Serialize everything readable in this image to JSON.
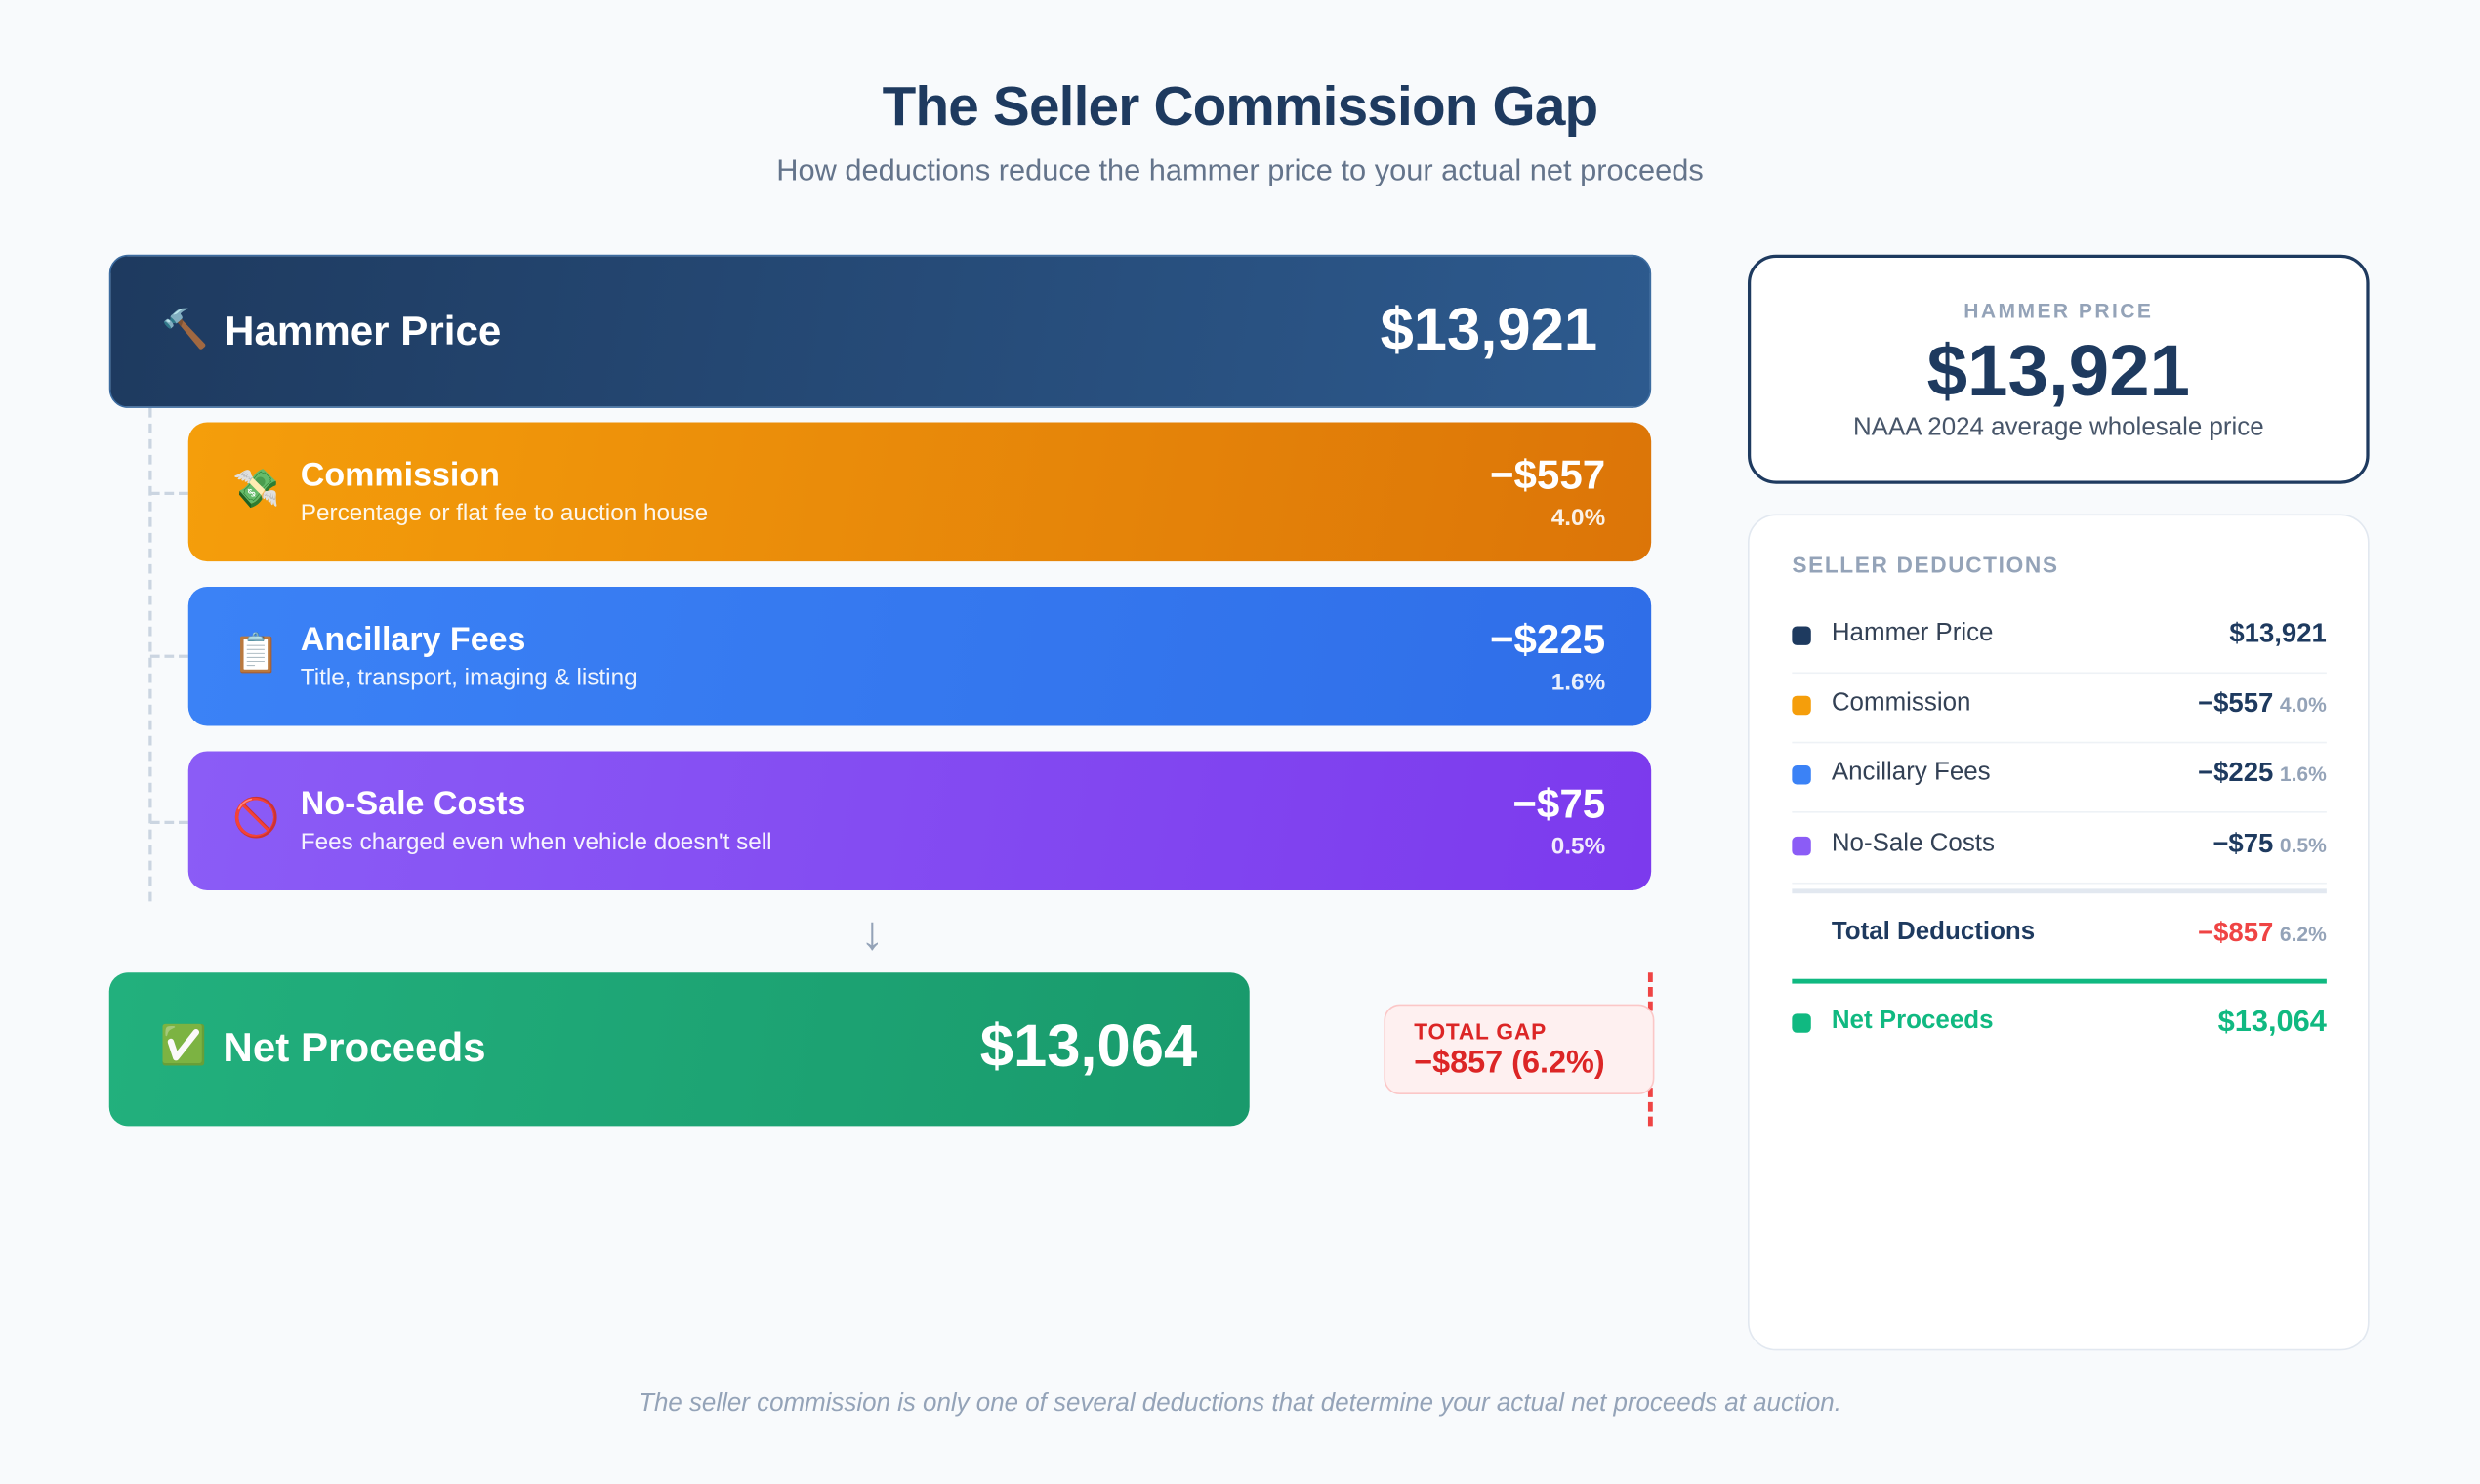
{
  "header": {
    "title": "The Seller Commission Gap",
    "subtitle": "How deductions reduce the hammer price to your actual net proceeds"
  },
  "flow": {
    "hammer": {
      "icon": "hammer-icon",
      "glyph": "🔨",
      "label": "Hammer Price",
      "value": "$13,921"
    },
    "deductions": [
      {
        "icon": "money-with-wings-icon",
        "glyph": "💸",
        "name": "Commission",
        "desc": "Percentage or flat fee to auction house",
        "amount": "−$557",
        "pct": "4.0%",
        "color": "#f59e0b"
      },
      {
        "icon": "clipboard-icon",
        "glyph": "📋",
        "name": "Ancillary Fees",
        "desc": "Title, transport, imaging & listing",
        "amount": "−$225",
        "pct": "1.6%",
        "color": "#3b82f6"
      },
      {
        "icon": "prohibited-icon",
        "glyph": "🚫",
        "name": "No-Sale Costs",
        "desc": "Fees charged even when vehicle doesn't sell",
        "amount": "−$75",
        "pct": "0.5%",
        "color": "#8b5cf6"
      }
    ],
    "arrow": "↓",
    "net": {
      "icon": "check-mark-icon",
      "glyph": "✅",
      "label": "Net Proceeds",
      "value": "$13,064"
    },
    "gap": {
      "label": "TOTAL GAP",
      "value": "−$857 (6.2%)"
    }
  },
  "summary_card": {
    "label": "HAMMER PRICE",
    "value": "$13,921",
    "caption": "NAAA 2024 average wholesale price"
  },
  "deductions_card": {
    "title": "SELLER DEDUCTIONS",
    "rows": [
      {
        "name": "Hammer Price",
        "amount": "$13,921",
        "pct": "",
        "color": "#1e3a5f"
      },
      {
        "name": "Commission",
        "amount": "−$557",
        "pct": "4.0%",
        "color": "#f59e0b"
      },
      {
        "name": "Ancillary Fees",
        "amount": "−$225",
        "pct": "1.6%",
        "color": "#3b82f6"
      },
      {
        "name": "No-Sale Costs",
        "amount": "−$75",
        "pct": "0.5%",
        "color": "#8b5cf6"
      }
    ],
    "total": {
      "name": "Total Deductions",
      "amount": "−$857",
      "pct": "6.2%",
      "color": "#ef4444"
    },
    "net": {
      "name": "Net Proceeds",
      "amount": "$13,064",
      "color": "#10b981"
    }
  },
  "footer": "The seller commission is only one of several deductions that determine your actual net proceeds at auction."
}
